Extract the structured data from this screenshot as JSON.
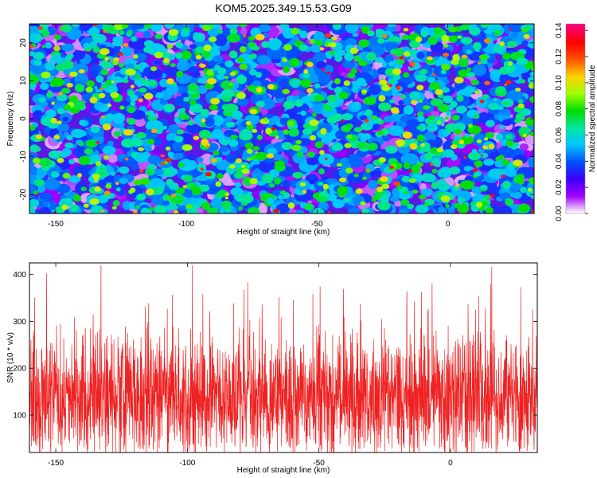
{
  "title": "KOM5.2025.349.15.53.G09",
  "chart_data": [
    {
      "type": "heatmap",
      "xlabel": "Height of straight line (km)",
      "ylabel": "Frequency (Hz)",
      "xlim": [
        -160,
        33
      ],
      "ylim": [
        -25,
        25
      ],
      "xticks": [
        -150,
        -100,
        -50,
        0
      ],
      "yticks": [
        -20,
        -10,
        0,
        10,
        20
      ],
      "colorbar": {
        "label": "Normalized spectral amplitude",
        "range": [
          0,
          0.145
        ],
        "ticks": [
          "0.00",
          "0.02",
          "0.04",
          "0.06",
          "0.08",
          "0.10",
          "0.12",
          "0.14"
        ],
        "colors": [
          "#ffffff",
          "#a000ff",
          "#3c00ff",
          "#0050ff",
          "#00c8ff",
          "#00e6a0",
          "#00dd00",
          "#a0ff00",
          "#ffd200",
          "#ff5000",
          "#ff0000",
          "#ff0080"
        ]
      },
      "description_values": "noise-like speckle field of spectral amplitude, typical 0.01-0.06, peaks up to ~0.14"
    },
    {
      "type": "line",
      "xlabel": "Height of straight line (km)",
      "ylabel": "SNR (10 * v/v)",
      "xlim": [
        -160,
        33
      ],
      "ylim": [
        20,
        425
      ],
      "xticks": [
        -150,
        -100,
        -50,
        0
      ],
      "yticks": [
        100,
        200,
        300,
        400
      ],
      "series": [
        {
          "name": "SNR",
          "color": "#ee2222",
          "mean": 140,
          "min": 20,
          "max": 420,
          "n_samples": 2400
        }
      ]
    }
  ]
}
